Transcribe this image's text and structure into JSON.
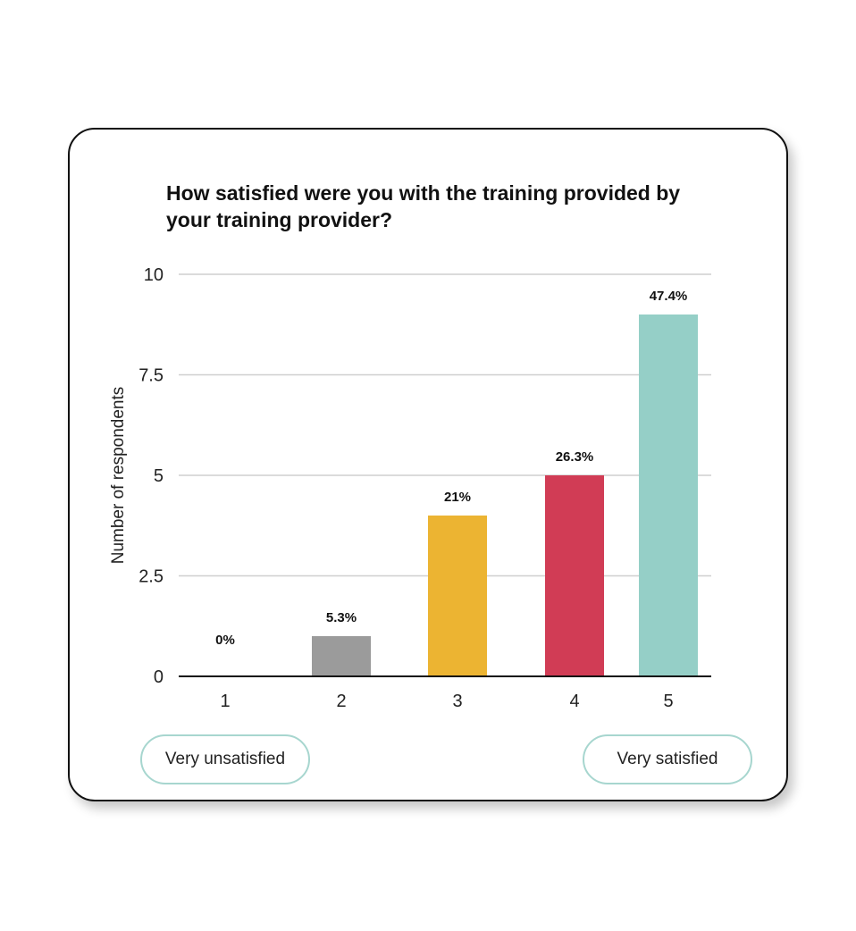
{
  "title": "How satisfied were you with the training provided by your training provider?",
  "chart_data": {
    "type": "bar",
    "title": "How satisfied were you with the training provided by your training provider?",
    "xlabel": "",
    "ylabel": "Number of respondents",
    "categories": [
      "1",
      "2",
      "3",
      "4",
      "5"
    ],
    "values": [
      0,
      1,
      4,
      5,
      9
    ],
    "data_labels": [
      "0%",
      "5.3%",
      "21%",
      "26.3%",
      "47.4%"
    ],
    "ylim": [
      0,
      10
    ],
    "yticks": [
      "0",
      "2.5",
      "5",
      "7.5",
      "10"
    ],
    "colors": [
      "#9b9b9b",
      "#9b9b9b",
      "#ecb432",
      "#d13c55",
      "#95cfc7"
    ],
    "grid": true
  },
  "scale_labels": {
    "low": "Very unsatisfied",
    "high": "Very satisfied"
  }
}
